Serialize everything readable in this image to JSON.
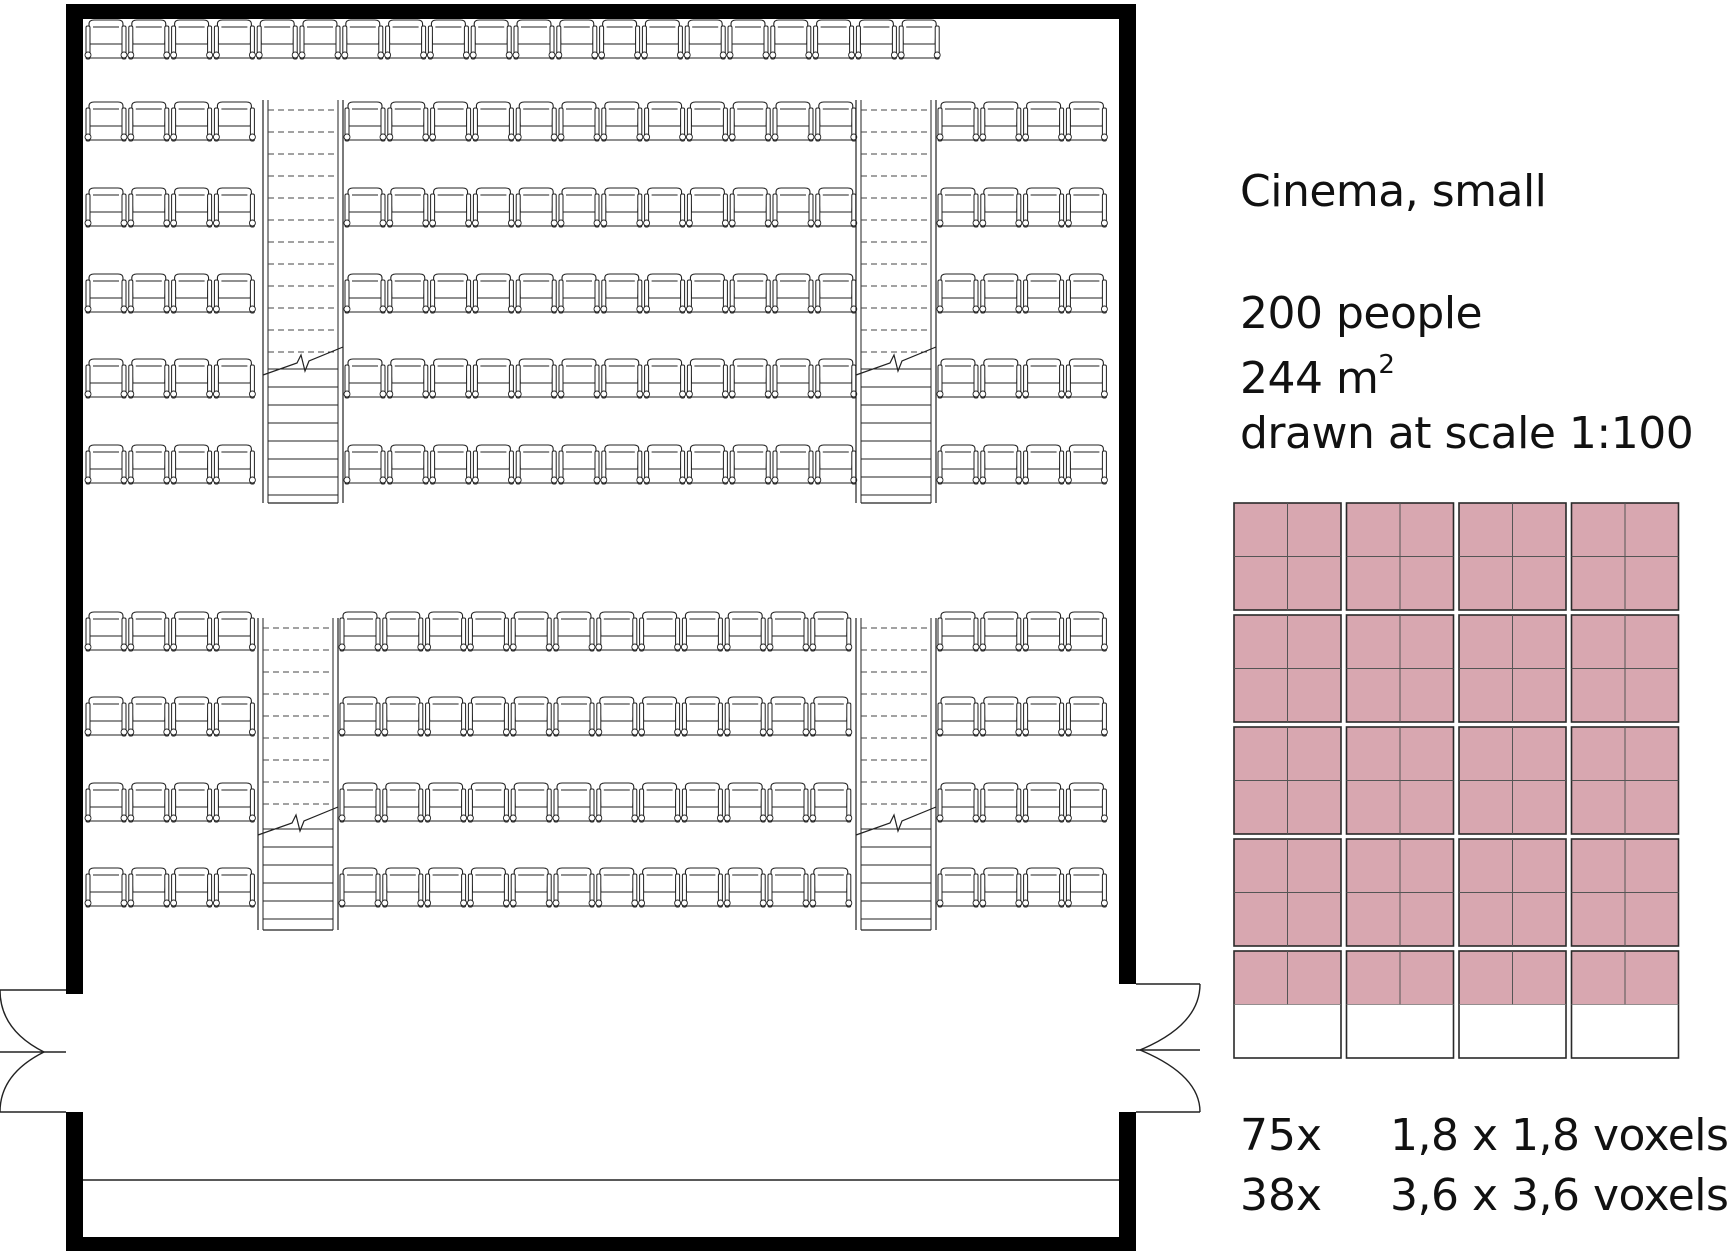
{
  "info": {
    "title": "Cinema, small",
    "people": "200 people",
    "area": "244 m",
    "area_sup": "2",
    "scale": "drawn at scale 1:100"
  },
  "voxels": {
    "lines": [
      {
        "count": "75x",
        "label": "1,8 x 1,8 voxels"
      },
      {
        "count": "38x",
        "label": "3,6 x 3,6 voxels"
      }
    ],
    "grid_rows": 5,
    "grid_cols": 4,
    "bottom_row_filled_fraction": 0.5,
    "fill_color": "#d8a7b0"
  },
  "plan": {
    "seat_rows_upper": 6,
    "seat_rows_lower": 4,
    "seat_blocks": [
      4,
      12,
      4
    ],
    "stair_count": 4,
    "door_count": 2
  }
}
